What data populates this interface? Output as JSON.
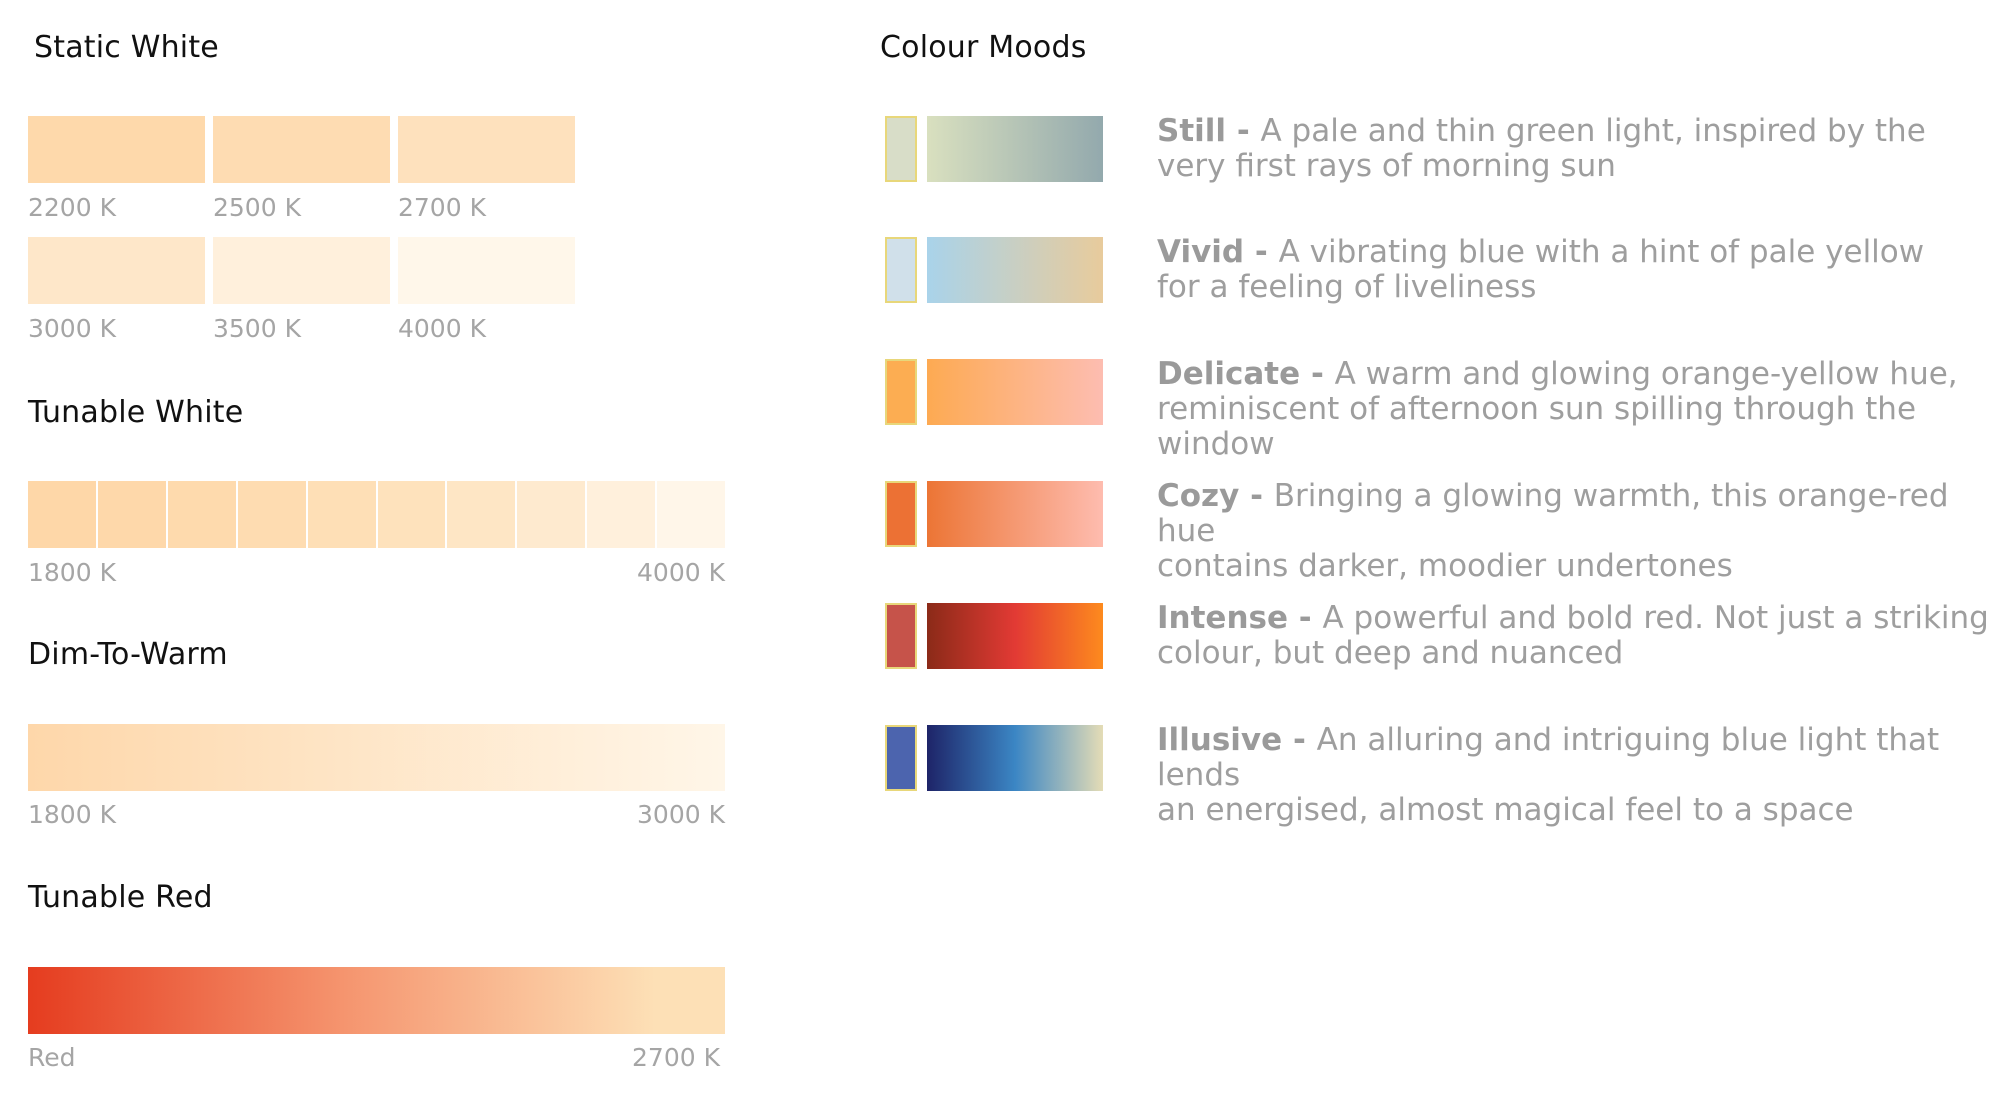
{
  "static_white": {
    "title": "Static White",
    "swatches": [
      {
        "label": "2200 K",
        "color": "#fed9ab"
      },
      {
        "label": "2500 K",
        "color": "#fedcb2"
      },
      {
        "label": "2700 K",
        "color": "#fee1bd"
      },
      {
        "label": "3000 K",
        "color": "#fee7c9"
      },
      {
        "label": "3500 K",
        "color": "#fff0dc"
      },
      {
        "label": "4000 K",
        "color": "#fff7ea"
      }
    ]
  },
  "tunable_white": {
    "title": "Tunable White",
    "start_label": "1800 K",
    "end_label": "4000 K",
    "steps": [
      "#fed7a8",
      "#fed8aa",
      "#fedaad",
      "#fedcb1",
      "#fedfb6",
      "#fee2bc",
      "#fee6c5",
      "#feeacf",
      "#fff0dc",
      "#fff6e9"
    ]
  },
  "dim_to_warm": {
    "title": "Dim-To-Warm",
    "start_label": "1800 K",
    "end_label": "3000 K",
    "start_color": "#fed7aa",
    "end_color": "#fff6e8"
  },
  "tunable_red": {
    "title": "Tunable Red",
    "start_label": "Red",
    "end_label": "2700 K",
    "start_color": "#e53c1f",
    "mid_color": "#f5946e",
    "end_color": "#fde0b6"
  },
  "colour_moods": {
    "title": "Colour Moods",
    "separator": " - ",
    "moods": [
      {
        "name": "Still",
        "line1": "A pale and thin green light, inspired by the",
        "line2": "very first rays of morning sun",
        "chip": "#d8ddc8",
        "grad_start": "#d9e0bf",
        "grad_end": "#93a9ad"
      },
      {
        "name": "Vivid",
        "line1": "A vibrating blue with a hint of pale yellow",
        "line2": "for a feeling of liveliness",
        "chip": "#d0e0ea",
        "grad_start": "#a9d3ea",
        "grad_end": "#e8cb9c"
      },
      {
        "name": "Delicate",
        "line1": "A warm and glowing orange-yellow hue,",
        "line2": "reminiscent of afternoon sun spilling through the window",
        "chip": "#fcad52",
        "grad_start": "#fdaa52",
        "grad_end": "#fdbdb1"
      },
      {
        "name": "Cozy",
        "line1": "Bringing a glowing warmth, this orange-red hue",
        "line2": "contains darker, moodier undertones",
        "chip": "#ec7134",
        "grad_start": "#ec7535",
        "grad_end": "#febcaf"
      },
      {
        "name": "Intense",
        "line1": "A powerful and bold red. Not just a striking",
        "line2": "colour, but deep and nuanced",
        "chip": "#c6534a",
        "grad_start": "#8b2a18",
        "grad_mid": "#e23a34",
        "grad_end": "#fd8a1e"
      },
      {
        "name": "Illusive",
        "line1": "An alluring and intriguing blue light that lends",
        "line2": "an energised, almost magical feel to a space",
        "chip": "#4c64ae",
        "grad_start": "#1e2468",
        "grad_mid": "#3b86c4",
        "grad_end": "#e4dcb6"
      }
    ]
  }
}
